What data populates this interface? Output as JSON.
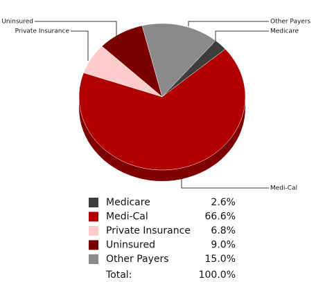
{
  "chart_data": {
    "type": "pie",
    "categories": [
      "Medicare",
      "Medi-Cal",
      "Private Insurance",
      "Uninsured",
      "Other Payers"
    ],
    "values": [
      2.6,
      66.6,
      6.8,
      9.0,
      15.0
    ],
    "value_labels": [
      "2.6%",
      "66.6%",
      "6.8%",
      "9.0%",
      "15.0%"
    ],
    "colors": [
      "#3d3d3d",
      "#b00000",
      "#ffcccc",
      "#7a0000",
      "#8a8a8a"
    ],
    "total": {
      "label": "Total:",
      "value": 100.0,
      "value_label": "100.0%"
    }
  }
}
